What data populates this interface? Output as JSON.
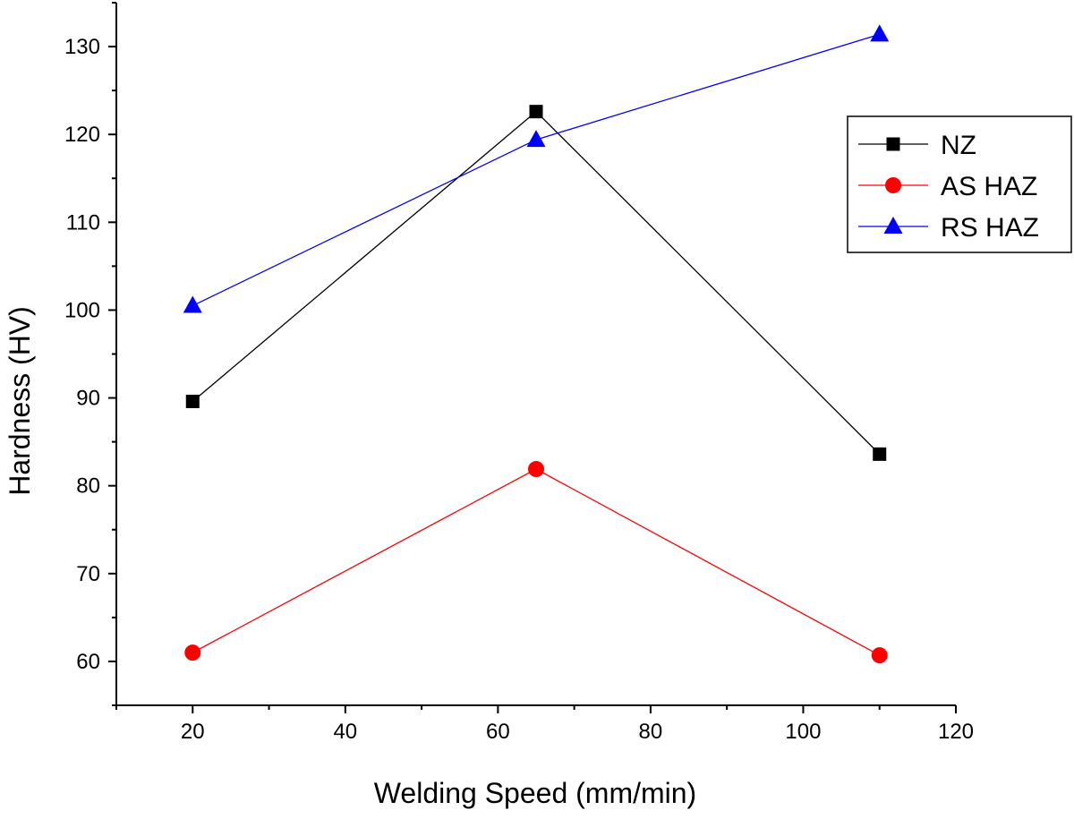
{
  "chart_data": {
    "type": "line",
    "title": "",
    "xlabel": "Welding Speed (mm/min)",
    "ylabel": "Hardness (HV)",
    "xlim": [
      10,
      120
    ],
    "ylim": [
      55,
      135
    ],
    "x_ticks": [
      20,
      40,
      60,
      80,
      100,
      120
    ],
    "y_ticks": [
      60,
      70,
      80,
      90,
      100,
      110,
      120,
      130
    ],
    "grid": false,
    "legend_position": "top-right",
    "x": [
      20,
      65,
      110
    ],
    "series": [
      {
        "name": "NZ",
        "values": [
          89.6,
          122.6,
          83.6
        ],
        "color": "#000000",
        "marker": "square"
      },
      {
        "name": "AS HAZ",
        "values": [
          61.0,
          81.9,
          60.7
        ],
        "color": "#ff0000",
        "marker": "circle"
      },
      {
        "name": "RS HAZ",
        "values": [
          100.5,
          119.4,
          131.4
        ],
        "color": "#0000ff",
        "marker": "triangle"
      }
    ]
  }
}
